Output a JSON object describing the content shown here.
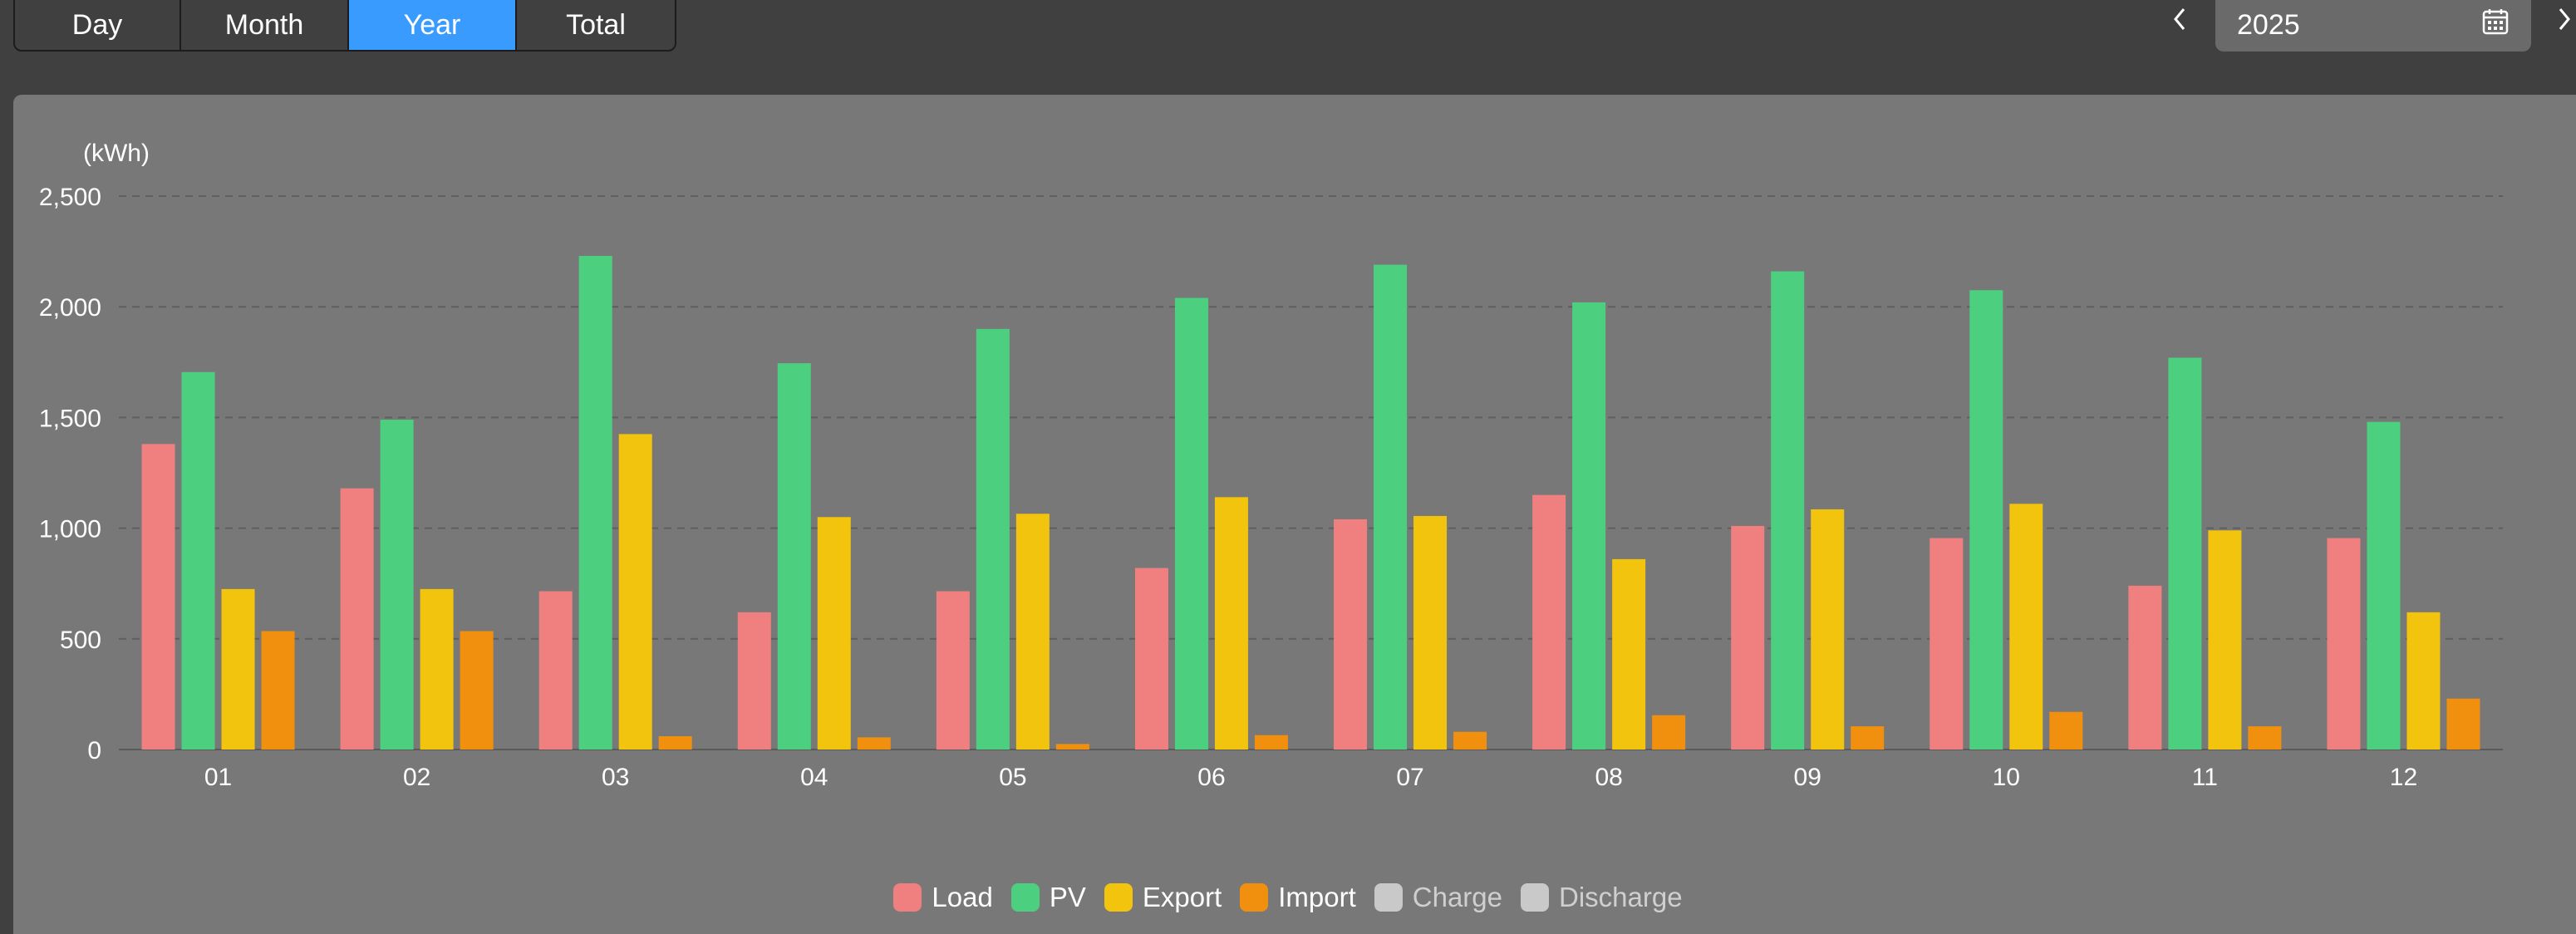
{
  "tabs": [
    {
      "label": "Day",
      "active": false
    },
    {
      "label": "Month",
      "active": false
    },
    {
      "label": "Year",
      "active": true
    },
    {
      "label": "Total",
      "active": false
    }
  ],
  "date_picker": {
    "value": "2025",
    "prev_icon": "chevron-left-icon",
    "next_icon": "chevron-right-icon",
    "calendar_icon": "calendar-icon"
  },
  "colors": {
    "page_background": "#404040",
    "panel_background": "#787878",
    "active_tab": "#3a9bff",
    "Load": "#f08080",
    "PV": "#4cd080",
    "Export": "#f2c40e",
    "Import": "#f0900e",
    "Charge": "#c9c9c9",
    "Discharge": "#c9c9c9"
  },
  "chart_data": {
    "type": "bar",
    "title": "",
    "unit_label": "(kWh)",
    "xlabel": "",
    "ylabel": "(kWh)",
    "ylim": [
      0,
      2500
    ],
    "y_ticks": [
      "0",
      "500",
      "1,000",
      "1,500",
      "2,000",
      "2,500"
    ],
    "grid": true,
    "legend_position": "bottom-center",
    "categories": [
      "01",
      "02",
      "03",
      "04",
      "05",
      "06",
      "07",
      "08",
      "09",
      "10",
      "11",
      "12"
    ],
    "series": [
      {
        "name": "Load",
        "values": [
          1380,
          1180,
          715,
          620,
          715,
          820,
          1040,
          1150,
          1010,
          955,
          740,
          955
        ]
      },
      {
        "name": "PV",
        "values": [
          1705,
          1490,
          2230,
          1745,
          1900,
          2040,
          2190,
          2020,
          2160,
          2075,
          1770,
          1480
        ]
      },
      {
        "name": "Export",
        "values": [
          725,
          725,
          1425,
          1050,
          1065,
          1140,
          1055,
          860,
          1085,
          1110,
          990,
          620
        ]
      },
      {
        "name": "Import",
        "values": [
          535,
          535,
          60,
          55,
          25,
          65,
          80,
          155,
          105,
          170,
          105,
          230
        ]
      }
    ],
    "legend": [
      {
        "name": "Load",
        "enabled": true
      },
      {
        "name": "PV",
        "enabled": true
      },
      {
        "name": "Export",
        "enabled": true
      },
      {
        "name": "Import",
        "enabled": true
      },
      {
        "name": "Charge",
        "enabled": false
      },
      {
        "name": "Discharge",
        "enabled": false
      }
    ]
  }
}
